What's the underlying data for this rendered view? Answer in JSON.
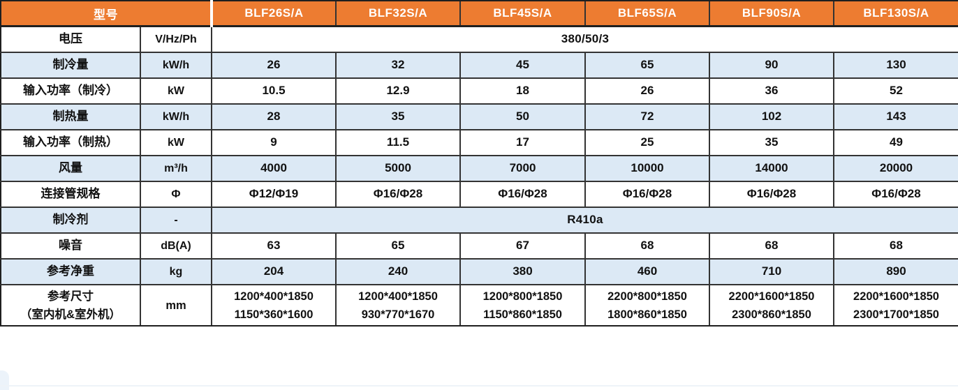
{
  "colors": {
    "header_background": "#ED7C31",
    "header_text": "#FFFFFF",
    "stripe_row": "#DCE9F5",
    "grid_border": "#333333",
    "body_text": "#111111"
  },
  "table": {
    "header": {
      "model_label": "型号",
      "models": [
        "BLF26S/A",
        "BLF32S/A",
        "BLF45S/A",
        "BLF65S/A",
        "BLF90S/A",
        "BLF130S/A"
      ]
    },
    "rows": [
      {
        "label": "电压",
        "unit": "V/Hz/Ph",
        "merged": "380/50/3"
      },
      {
        "label": "制冷量",
        "unit": "kW/h",
        "values": [
          "26",
          "32",
          "45",
          "65",
          "90",
          "130"
        ]
      },
      {
        "label": "输入功率（制冷）",
        "unit": "kW",
        "values": [
          "10.5",
          "12.9",
          "18",
          "26",
          "36",
          "52"
        ]
      },
      {
        "label": "制热量",
        "unit": "kW/h",
        "values": [
          "28",
          "35",
          "50",
          "72",
          "102",
          "143"
        ]
      },
      {
        "label": "输入功率（制热）",
        "unit": "kW",
        "values": [
          "9",
          "11.5",
          "17",
          "25",
          "35",
          "49"
        ]
      },
      {
        "label": "风量",
        "unit": "m³/h",
        "values": [
          "4000",
          "5000",
          "7000",
          "10000",
          "14000",
          "20000"
        ]
      },
      {
        "label": "连接管规格",
        "unit": "Φ",
        "values": [
          "Φ12/Φ19",
          "Φ16/Φ28",
          "Φ16/Φ28",
          "Φ16/Φ28",
          "Φ16/Φ28",
          "Φ16/Φ28"
        ]
      },
      {
        "label": "制冷剂",
        "unit": "-",
        "merged": "R410a"
      },
      {
        "label": "噪音",
        "unit": "dB(A)",
        "values": [
          "63",
          "65",
          "67",
          "68",
          "68",
          "68"
        ]
      },
      {
        "label": "参考净重",
        "unit": "kg",
        "values": [
          "204",
          "240",
          "380",
          "460",
          "710",
          "890"
        ]
      },
      {
        "label": "参考尺寸\n（室内机&室外机）",
        "unit": "mm",
        "values": [
          "1200*400*1850\n1150*360*1600",
          "1200*400*1850\n930*770*1670",
          "1200*800*1850\n1150*860*1850",
          "2200*800*1850\n1800*860*1850",
          "2200*1600*1850\n2300*860*1850",
          "2200*1600*1850\n2300*1700*1850"
        ]
      }
    ]
  }
}
